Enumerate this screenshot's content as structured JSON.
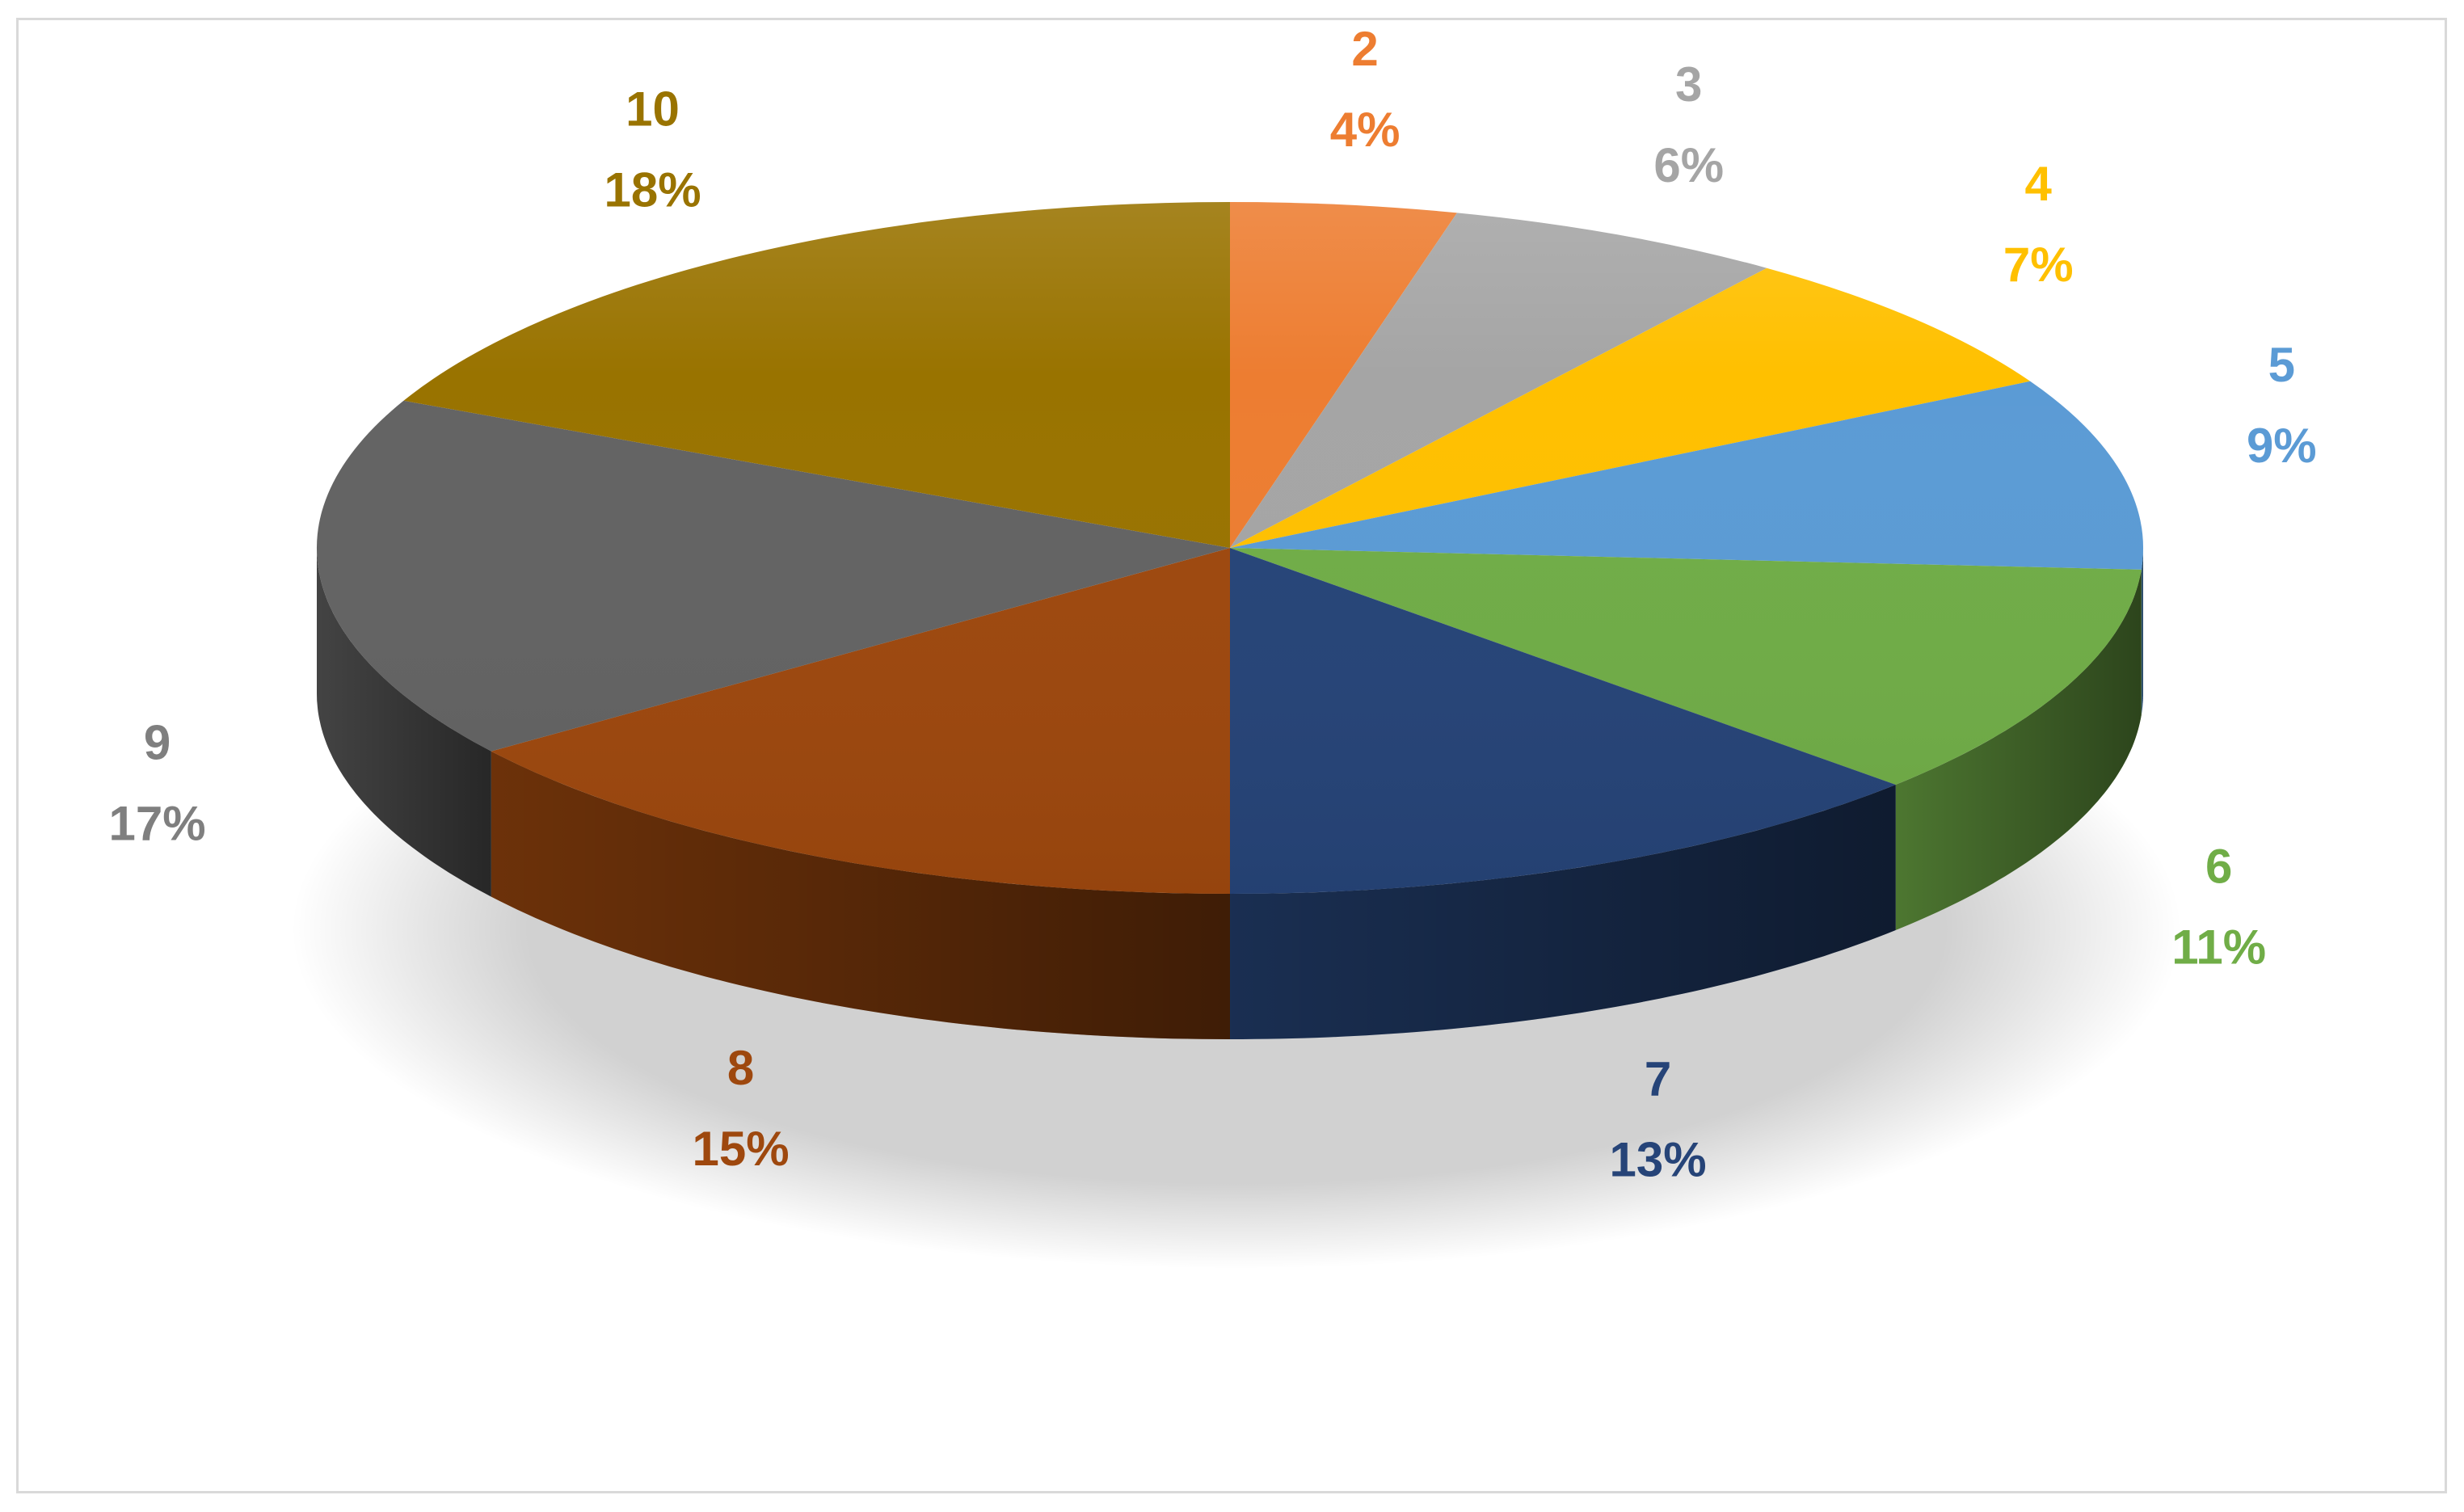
{
  "chart_data": {
    "type": "pie",
    "title": "",
    "slices": [
      {
        "label": "2",
        "pct_label": "4%",
        "value": 4,
        "color": "#ED7D31"
      },
      {
        "label": "3",
        "pct_label": "6%",
        "value": 6,
        "color": "#A5A5A5"
      },
      {
        "label": "4",
        "pct_label": "7%",
        "value": 7,
        "color": "#FFC000"
      },
      {
        "label": "5",
        "pct_label": "9%",
        "value": 9,
        "color": "#5B9BD5"
      },
      {
        "label": "6",
        "pct_label": "11%",
        "value": 11,
        "color": "#70AD47"
      },
      {
        "label": "7",
        "pct_label": "13%",
        "value": 13,
        "color": "#264478"
      },
      {
        "label": "8",
        "pct_label": "15%",
        "value": 15,
        "color": "#9E480E"
      },
      {
        "label": "9",
        "pct_label": "17%",
        "value": 17,
        "color": "#636363"
      },
      {
        "label": "10",
        "pct_label": "18%",
        "value": 18,
        "color": "#997300"
      }
    ],
    "label_colors": {
      "2": "#ED7D31",
      "3": "#A5A5A5",
      "4": "#FFC000",
      "5": "#5B9BD5",
      "6": "#70AD47",
      "7": "#264478",
      "8": "#9E480E",
      "9": "#7F7F7F",
      "10": "#997300"
    },
    "style": "3d-exploded-none",
    "legend": "none",
    "data_labels": "category-and-percent"
  }
}
